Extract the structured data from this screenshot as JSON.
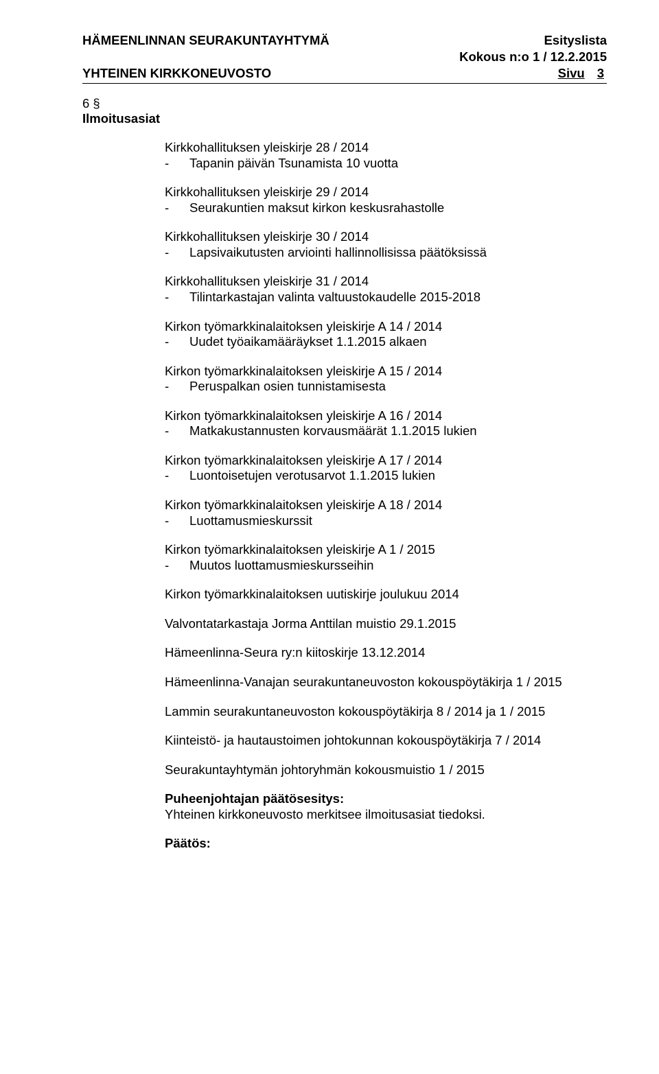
{
  "header": {
    "org": "HÄMEENLINNAN SEURAKUNTAYHTYMÄ",
    "doc_type": "Esityslista",
    "meeting": "Kokous n:o 1 / 12.2.2015",
    "body": "YHTEINEN KIRKKONEUVOSTO",
    "page_label": "Sivu",
    "page_num": "3"
  },
  "section": {
    "num": "6 §",
    "title": "Ilmoitusasiat"
  },
  "circulars": [
    {
      "heading": "Kirkkohallituksen yleiskirje 28 / 2014",
      "bullet": "Tapanin päivän Tsunamista 10 vuotta"
    },
    {
      "heading": "Kirkkohallituksen yleiskirje 29 / 2014",
      "bullet": "Seurakuntien maksut kirkon keskusrahastolle"
    },
    {
      "heading": "Kirkkohallituksen yleiskirje 30 / 2014",
      "bullet": "Lapsivaikutusten arviointi hallinnollisissa päätöksissä"
    },
    {
      "heading": "Kirkkohallituksen yleiskirje 31 / 2014",
      "bullet": "Tilintarkastajan valinta valtuustokaudelle 2015-2018"
    },
    {
      "heading": "Kirkon työmarkkinalaitoksen yleiskirje A 14 / 2014",
      "bullet": "Uudet työaikamääräykset 1.1.2015 alkaen"
    },
    {
      "heading": "Kirkon työmarkkinalaitoksen yleiskirje A 15 / 2014",
      "bullet": "Peruspalkan osien tunnistamisesta"
    },
    {
      "heading": "Kirkon työmarkkinalaitoksen yleiskirje A 16 / 2014",
      "bullet": "Matkakustannusten korvausmäärät 1.1.2015 lukien"
    },
    {
      "heading": "Kirkon työmarkkinalaitoksen yleiskirje A 17 / 2014",
      "bullet": "Luontoisetujen verotusarvot 1.1.2015 lukien"
    },
    {
      "heading": "Kirkon työmarkkinalaitoksen yleiskirje A 18 / 2014",
      "bullet": "Luottamusmieskurssit"
    },
    {
      "heading": "Kirkon työmarkkinalaitoksen yleiskirje A 1 / 2015",
      "bullet": "Muutos luottamusmieskursseihin"
    }
  ],
  "paragraphs": [
    "Kirkon työmarkkinalaitoksen uutiskirje joulukuu 2014",
    "Valvontatarkastaja Jorma Anttilan muistio 29.1.2015",
    "Hämeenlinna-Seura ry:n kiitoskirje 13.12.2014",
    "Hämeenlinna-Vanajan seurakuntaneuvoston kokouspöytäkirja 1 / 2015",
    "Lammin seurakuntaneuvoston kokouspöytäkirja 8 / 2014 ja 1 / 2015",
    "Kiinteistö- ja hautaustoimen johtokunnan kokouspöytäkirja 7 / 2014",
    "Seurakuntayhtymän johtoryhmän kokousmuistio 1 / 2015"
  ],
  "proposal": {
    "title": "Puheenjohtajan päätösesitys:",
    "text": "Yhteinen kirkkoneuvosto merkitsee ilmoitusasiat tiedoksi."
  },
  "decision_label": "Päätös:"
}
